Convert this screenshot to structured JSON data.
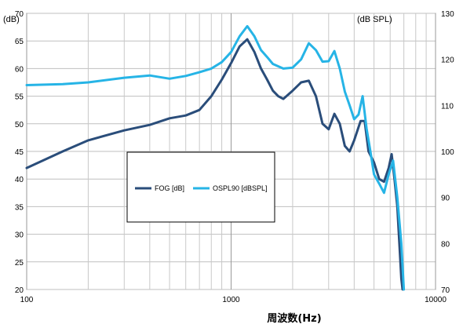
{
  "chart_data": {
    "type": "line",
    "title": "",
    "xlabel": "周波数(Hz)",
    "xscale": "log",
    "xlim": [
      100,
      10000
    ],
    "x_ticks": [
      100,
      1000,
      10000
    ],
    "x_tick_labels": [
      "100",
      "1000",
      "10000"
    ],
    "ylabel_left": "(dB)",
    "ylim_left": [
      20,
      70
    ],
    "y_ticks_left": [
      20,
      25,
      30,
      35,
      40,
      45,
      50,
      55,
      60,
      65,
      70
    ],
    "ylabel_right": "(dB SPL)",
    "ylim_right": [
      70,
      130
    ],
    "y_ticks_right": [
      70,
      80,
      90,
      100,
      110,
      120,
      130
    ],
    "grid": true,
    "legend_position": "center-left",
    "colors": {
      "FOG [dB]": "#2a4d7a",
      "OSPL90 [dBSPL]": "#26b4e6"
    },
    "series": [
      {
        "name": "FOG [dB]",
        "axis": "left",
        "points": [
          [
            100,
            42
          ],
          [
            150,
            45
          ],
          [
            200,
            47
          ],
          [
            300,
            48.8
          ],
          [
            400,
            49.8
          ],
          [
            500,
            51
          ],
          [
            600,
            51.5
          ],
          [
            700,
            52.5
          ],
          [
            800,
            55
          ],
          [
            900,
            58
          ],
          [
            1000,
            61
          ],
          [
            1100,
            64
          ],
          [
            1200,
            65.3
          ],
          [
            1300,
            63
          ],
          [
            1400,
            60
          ],
          [
            1500,
            58
          ],
          [
            1600,
            56
          ],
          [
            1700,
            55
          ],
          [
            1800,
            54.5
          ],
          [
            2000,
            56
          ],
          [
            2200,
            57.5
          ],
          [
            2400,
            57.8
          ],
          [
            2600,
            55
          ],
          [
            2800,
            50
          ],
          [
            3000,
            49
          ],
          [
            3200,
            51.8
          ],
          [
            3400,
            50
          ],
          [
            3600,
            46
          ],
          [
            3800,
            45
          ],
          [
            4000,
            47
          ],
          [
            4300,
            50.5
          ],
          [
            4500,
            50.5
          ],
          [
            4700,
            45
          ],
          [
            5000,
            43
          ],
          [
            5300,
            40
          ],
          [
            5600,
            39.5
          ],
          [
            5900,
            42
          ],
          [
            6100,
            44.5
          ],
          [
            6300,
            40
          ],
          [
            6500,
            35
          ],
          [
            6800,
            22
          ],
          [
            6900,
            20
          ]
        ]
      },
      {
        "name": "OSPL90 [dBSPL]",
        "axis": "right",
        "points": [
          [
            100,
            114.4
          ],
          [
            150,
            114.6
          ],
          [
            200,
            115
          ],
          [
            300,
            116
          ],
          [
            400,
            116.5
          ],
          [
            500,
            115.8
          ],
          [
            600,
            116.4
          ],
          [
            700,
            117.2
          ],
          [
            800,
            118
          ],
          [
            900,
            119.4
          ],
          [
            1000,
            121.6
          ],
          [
            1100,
            125
          ],
          [
            1200,
            127.2
          ],
          [
            1300,
            125
          ],
          [
            1400,
            122
          ],
          [
            1500,
            120.5
          ],
          [
            1600,
            119
          ],
          [
            1800,
            118
          ],
          [
            2000,
            118.2
          ],
          [
            2200,
            120
          ],
          [
            2400,
            123.5
          ],
          [
            2600,
            122
          ],
          [
            2800,
            119.5
          ],
          [
            3000,
            119.6
          ],
          [
            3200,
            121.8
          ],
          [
            3400,
            118
          ],
          [
            3600,
            113
          ],
          [
            3800,
            110
          ],
          [
            4000,
            107
          ],
          [
            4200,
            108
          ],
          [
            4400,
            112
          ],
          [
            4600,
            105
          ],
          [
            4800,
            100
          ],
          [
            5000,
            95
          ],
          [
            5300,
            93
          ],
          [
            5600,
            91
          ],
          [
            5900,
            95
          ],
          [
            6200,
            98
          ],
          [
            6500,
            90
          ],
          [
            6800,
            80
          ],
          [
            7000,
            70
          ]
        ]
      }
    ]
  }
}
